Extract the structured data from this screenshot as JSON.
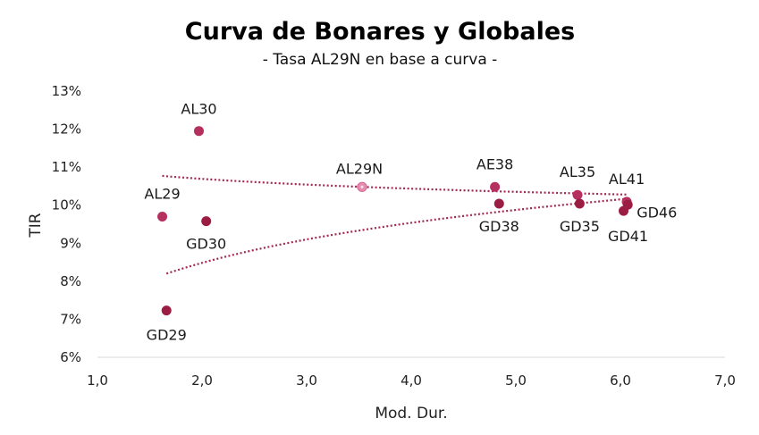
{
  "chart_data": {
    "type": "scatter",
    "title": "Curva de Bonares y Globales",
    "subtitle": "- Tasa AL29N en base a curva -",
    "xlabel": "Mod. Dur.",
    "ylabel": "TIR",
    "xlim": [
      1.0,
      7.0
    ],
    "ylim": [
      6,
      13
    ],
    "x_ticks": [
      "1,0",
      "2,0",
      "3,0",
      "4,0",
      "5,0",
      "6,0",
      "7,0"
    ],
    "y_ticks": [
      "6%",
      "7%",
      "8%",
      "9%",
      "10%",
      "11%",
      "12%",
      "13%"
    ],
    "grid": false,
    "legend": "none",
    "colors": {
      "bonares": "#b5305f",
      "globales": "#9c1d44",
      "highlight": "#e58bb0",
      "highlight_label": "#d9749e",
      "trend": "#a3284f"
    },
    "points": [
      {
        "label": "AL30",
        "x": 1.97,
        "y": 11.95,
        "group": "bonares"
      },
      {
        "label": "AL29",
        "x": 1.62,
        "y": 9.7,
        "group": "bonares"
      },
      {
        "label": "GD30",
        "x": 2.04,
        "y": 9.58,
        "group": "globales"
      },
      {
        "label": "GD29",
        "x": 1.66,
        "y": 7.23,
        "group": "globales"
      },
      {
        "label": "AL29N",
        "x": 3.53,
        "y": 10.48,
        "group": "highlight"
      },
      {
        "label": "AE38",
        "x": 4.8,
        "y": 10.48,
        "group": "bonares"
      },
      {
        "label": "GD38",
        "x": 4.84,
        "y": 10.04,
        "group": "globales"
      },
      {
        "label": "AL35",
        "x": 5.59,
        "y": 10.27,
        "group": "bonares"
      },
      {
        "label": "GD35",
        "x": 5.61,
        "y": 10.04,
        "group": "globales"
      },
      {
        "label": "AL41",
        "x": 6.06,
        "y": 10.09,
        "group": "bonares"
      },
      {
        "label": "GD46",
        "x": 6.07,
        "y": 10.01,
        "group": "globales"
      },
      {
        "label": "GD41",
        "x": 6.03,
        "y": 9.85,
        "group": "globales"
      }
    ],
    "trendlines": [
      {
        "group": "bonares",
        "type": "logarithmic",
        "x_range": [
          1.62,
          6.06
        ],
        "y_at_start": 10.77,
        "y_at_end": 10.28
      },
      {
        "group": "globales",
        "type": "logarithmic",
        "x_range": [
          1.66,
          6.07
        ],
        "y_at_start": 8.2,
        "y_at_end": 10.17
      }
    ]
  }
}
